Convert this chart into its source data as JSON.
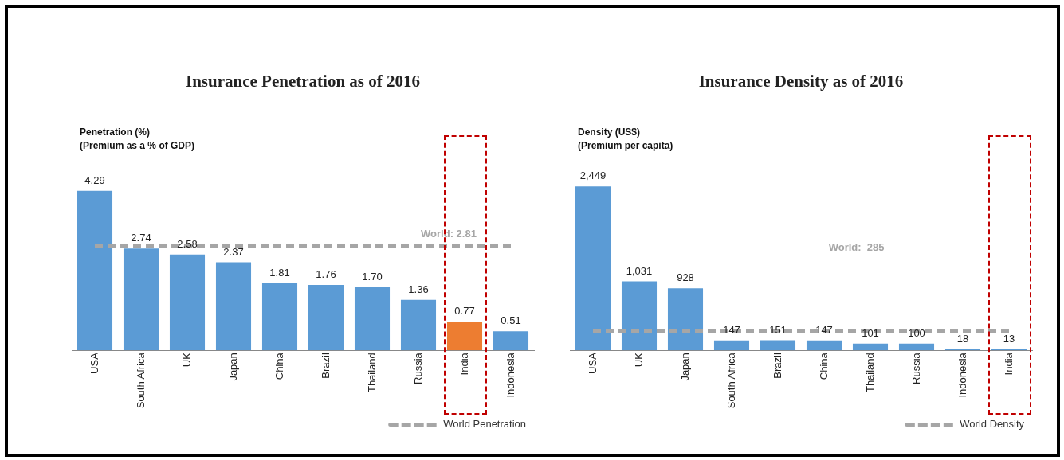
{
  "chart_data": [
    {
      "type": "bar",
      "title": "Insurance Penetration as of 2016",
      "ylabel": "Penetration (%)\n(Premium as a % of GDP)",
      "categories": [
        "USA",
        "South Africa",
        "UK",
        "Japan",
        "China",
        "Brazil",
        "Thailand",
        "Russia",
        "India",
        "Indonesia"
      ],
      "series": [
        {
          "values": [
            4.29,
            2.74,
            2.58,
            2.37,
            1.81,
            1.76,
            1.7,
            1.36,
            0.77,
            0.51
          ],
          "value_labels": [
            "4.29",
            "2.74",
            "2.58",
            "2.37",
            "1.81",
            "1.76",
            "1.70",
            "1.36",
            "0.77",
            "0.51"
          ],
          "colors": [
            "#5b9bd5",
            "#5b9bd5",
            "#5b9bd5",
            "#5b9bd5",
            "#5b9bd5",
            "#5b9bd5",
            "#5b9bd5",
            "#5b9bd5",
            "#ed7d31",
            "#5b9bd5"
          ]
        },
        {
          "type": "line",
          "name": "World Penetration",
          "color": "#a6a6a6",
          "line_style": "dashed",
          "marker": "none",
          "values": [
            2.81,
            2.81,
            2.81,
            2.81,
            2.81,
            2.81,
            2.81,
            2.81,
            2.81,
            2.81
          ]
        }
      ],
      "annotations": [
        {
          "text": "World: 2.81",
          "x": "India",
          "y": 2.81
        }
      ],
      "tick_labels": "x",
      "grid": false,
      "legend": "bottom right"
    },
    {
      "type": "bar",
      "title": "Insurance Density as of 2016",
      "ylabel": "Density (US$)\n(Premium per capita)",
      "categories": [
        "USA",
        "UK",
        "Japan",
        "South Africa",
        "Brazil",
        "China",
        "Thailand",
        "Russia",
        "Indonesia",
        "India"
      ],
      "series": [
        {
          "values": [
            2449,
            1031,
            928,
            147,
            151,
            147,
            101,
            100,
            18,
            13
          ],
          "colors": [
            "#5b9bd5",
            "#5b9bd5",
            "#5b9bd5",
            "#5b9bd5",
            "#5b9bd5",
            "#5b9bd5",
            "#5b9bd5",
            "#5b9bd5",
            "#5b9bd5",
            "#5b9bd5"
          ],
          "value_labels": [
            "2,449",
            "1,031",
            "928",
            "147",
            "151",
            "147",
            "101",
            "100",
            "18",
            "13"
          ]
        },
        {
          "type": "line",
          "name": "World Density",
          "color": "#a6a6a6",
          "line_style": "dashed",
          "marker": "none",
          "values": [
            285,
            285,
            285,
            285,
            285,
            285,
            285,
            285,
            285,
            285
          ]
        }
      ],
      "annotations": [
        "World:  285"
      ],
      "tick_labels": "x",
      "grid": false,
      "legend": "bottom right"
    }
  ]
}
